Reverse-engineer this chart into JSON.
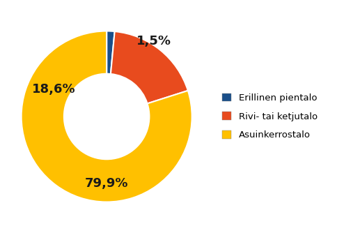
{
  "labels": [
    "Erillinen pientalo",
    "Rivi- tai ketjutalo",
    "Asuinkerrostalo"
  ],
  "values": [
    1.5,
    18.6,
    79.9
  ],
  "colors": [
    "#1a4f8a",
    "#e84b1e",
    "#ffc000"
  ],
  "pct_labels": [
    "1,5%",
    "18,6%",
    "79,9%"
  ],
  "legend_labels": [
    "Erillinen pientalo",
    "Rivi- tai ketjutalo",
    "Asuinkerrostalo"
  ],
  "legend_colors": [
    "#1a4f8a",
    "#e84b1e",
    "#ffc000"
  ],
  "bg_color": "#ffffff",
  "font_size_pct": 13,
  "font_size_legend": 9.5
}
